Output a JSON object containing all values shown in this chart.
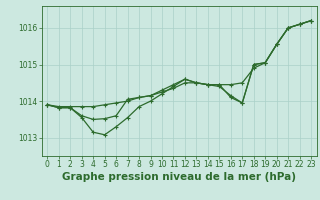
{
  "bg_color": "#cce8e0",
  "line_color": "#2d6b2d",
  "grid_color": "#aad0c8",
  "title": "Graphe pression niveau de la mer (hPa)",
  "title_color": "#2d6b2d",
  "xlim": [
    -0.5,
    23.5
  ],
  "ylim": [
    1012.5,
    1016.6
  ],
  "yticks": [
    1013,
    1014,
    1015,
    1016
  ],
  "xticks": [
    0,
    1,
    2,
    3,
    4,
    5,
    6,
    7,
    8,
    9,
    10,
    11,
    12,
    13,
    14,
    15,
    16,
    17,
    18,
    19,
    20,
    21,
    22,
    23
  ],
  "series1_x": [
    0,
    1,
    2,
    3,
    4,
    5,
    6,
    7,
    8,
    9,
    10,
    11,
    12,
    13,
    14,
    15,
    16,
    17,
    18,
    19,
    20,
    21,
    22,
    23
  ],
  "series1_y": [
    1013.9,
    1013.85,
    1013.85,
    1013.85,
    1013.85,
    1013.9,
    1013.95,
    1014.0,
    1014.1,
    1014.15,
    1014.25,
    1014.35,
    1014.5,
    1014.5,
    1014.45,
    1014.45,
    1014.45,
    1014.5,
    1014.9,
    1015.05,
    1015.55,
    1016.0,
    1016.1,
    1016.2
  ],
  "series2_x": [
    0,
    1,
    2,
    3,
    4,
    5,
    6,
    7,
    8,
    9,
    10,
    11,
    12,
    13,
    14,
    15,
    16,
    17,
    18,
    19,
    20,
    21,
    22,
    23
  ],
  "series2_y": [
    1013.9,
    1013.82,
    1013.82,
    1013.55,
    1013.15,
    1013.08,
    1013.3,
    1013.55,
    1013.85,
    1014.0,
    1014.2,
    1014.4,
    1014.6,
    1014.5,
    1014.45,
    1014.45,
    1014.1,
    1013.95,
    1015.0,
    1015.05,
    1015.55,
    1016.0,
    1016.1,
    1016.2
  ],
  "series3_x": [
    0,
    1,
    2,
    3,
    4,
    5,
    6,
    7,
    8,
    9,
    10,
    11,
    12,
    13,
    14,
    15,
    16,
    17,
    18,
    19,
    20,
    21,
    22,
    23
  ],
  "series3_y": [
    1013.9,
    1013.82,
    1013.82,
    1013.6,
    1013.5,
    1013.52,
    1013.6,
    1014.05,
    1014.1,
    1014.15,
    1014.3,
    1014.45,
    1014.6,
    1014.5,
    1014.45,
    1014.4,
    1014.15,
    1013.95,
    1015.0,
    1015.05,
    1015.55,
    1016.0,
    1016.1,
    1016.2
  ],
  "marker": "+",
  "markersize": 3,
  "markeredgewidth": 0.8,
  "linewidth": 0.9,
  "tick_fontsize": 5.5,
  "title_fontsize": 7.5
}
